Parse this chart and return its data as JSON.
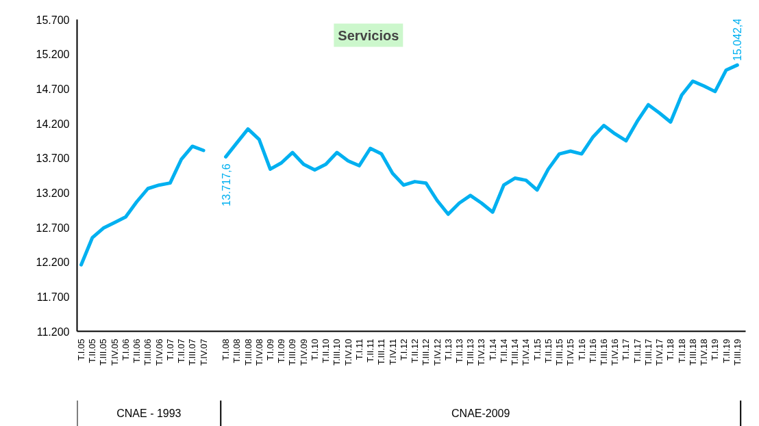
{
  "chart_data": {
    "type": "line",
    "title": "Servicios",
    "categories": [
      "T.I.05",
      "T.II.05",
      "T.III.05",
      "T.IV.05",
      "T.I.06",
      "T.II.06",
      "T.III.06",
      "T.IV.06",
      "T.I.07",
      "T.II.07",
      "T.III.07",
      "T.IV.07",
      null,
      "T.I.08",
      "T.II.08",
      "T.III.08",
      "T.IV.08",
      "T.I.09",
      "T.II.09",
      "T.III.09",
      "T.IV.09",
      "T.I.10",
      "T.II.10",
      "T.III.10",
      "T.IV.10",
      "T.I.11",
      "T.II.11",
      "T.III.11",
      "T.IV.11",
      "T.I.12",
      "T.II.12",
      "T.III.12",
      "T.IV.12",
      "T.I.13",
      "T.II.13",
      "T.III.13",
      "T.IV.13",
      "T.I.14",
      "T.II.14",
      "T.III.14",
      "T.IV.14",
      "T.I.15",
      "T.II.15",
      "T.III.15",
      "T.IV.15",
      "T.I.16",
      "T.II.16",
      "T.III.16",
      "T.IV.16",
      "T.I.17",
      "T.II.17",
      "T.III.17",
      "T.IV.17",
      "T.I.18",
      "T.II.18",
      "T.III.18",
      "T.IV.18",
      "T.I.19",
      "T.II.19",
      "T.III.19"
    ],
    "series": [
      {
        "color": "#00b0f0",
        "values": [
          12160,
          12550,
          12690,
          12770,
          12850,
          13070,
          13260,
          13310,
          13340,
          13680,
          13870,
          13810,
          null,
          13717.6,
          13920,
          14120,
          13970,
          13540,
          13630,
          13780,
          13610,
          13530,
          13610,
          13780,
          13660,
          13590,
          13840,
          13760,
          13480,
          13310,
          13360,
          13340,
          13090,
          12890,
          13050,
          13160,
          13050,
          12920,
          13310,
          13410,
          13380,
          13240,
          13540,
          13760,
          13800,
          13760,
          14000,
          14170,
          14050,
          13950,
          14230,
          14470,
          14350,
          14220,
          14610,
          14810,
          14740,
          14660,
          14970,
          15042.4
        ],
        "value_labels": [
          null,
          null,
          null,
          null,
          null,
          null,
          null,
          null,
          null,
          null,
          null,
          null,
          null,
          "13.717,6",
          null,
          null,
          null,
          null,
          null,
          null,
          null,
          null,
          null,
          null,
          null,
          null,
          null,
          null,
          null,
          null,
          null,
          null,
          null,
          null,
          null,
          null,
          null,
          null,
          null,
          null,
          null,
          null,
          null,
          null,
          null,
          null,
          null,
          null,
          null,
          null,
          null,
          null,
          null,
          null,
          null,
          null,
          null,
          null,
          null,
          "15.042,4"
        ]
      }
    ],
    "ylim": [
      11200,
      15700
    ],
    "yticks": [
      {
        "value": 11200,
        "label": "11.200"
      },
      {
        "value": 11700,
        "label": "11.700"
      },
      {
        "value": 12200,
        "label": "12.200"
      },
      {
        "value": 12700,
        "label": "12.700"
      },
      {
        "value": 13200,
        "label": "13.200"
      },
      {
        "value": 13700,
        "label": "13.700"
      },
      {
        "value": 14200,
        "label": "14.200"
      },
      {
        "value": 14700,
        "label": "14.700"
      },
      {
        "value": 15200,
        "label": "15.200"
      },
      {
        "value": 15700,
        "label": "15.700"
      }
    ],
    "grid": false,
    "marker": "none",
    "line_style": "solid",
    "annotations": [
      "CNAE - 1993",
      "CNAE-2009"
    ]
  }
}
